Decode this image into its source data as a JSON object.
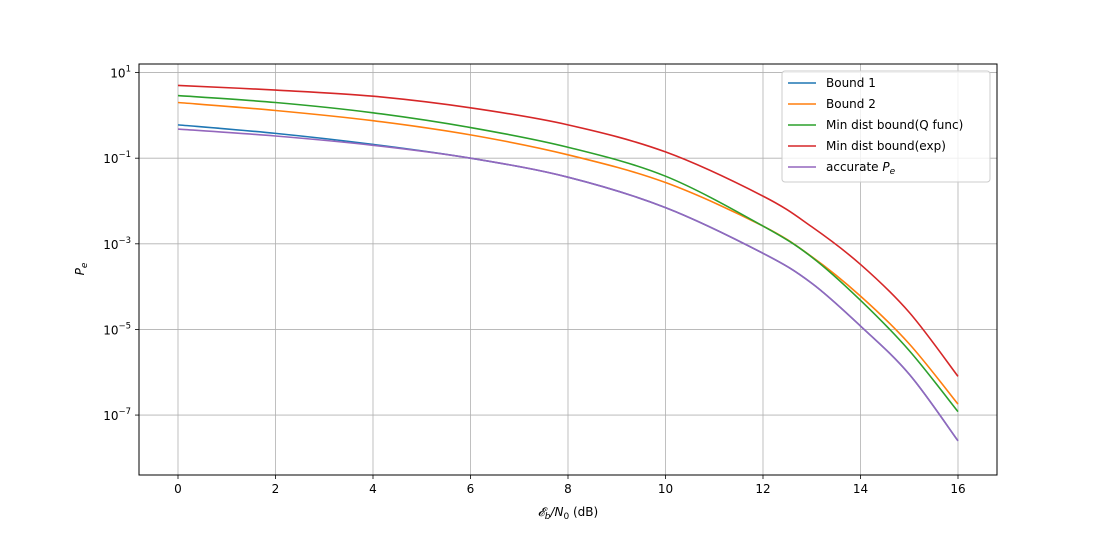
{
  "chart_data": {
    "type": "line",
    "xlabel": "𝓔b/N0 (dB)",
    "xlabel_parts": {
      "e": "𝓔",
      "b_sub": "b",
      "slash_n": "/N",
      "zero_sub": "0",
      "units": " (dB)"
    },
    "ylabel_parts": {
      "p": "P",
      "e_sub": "e"
    },
    "yscale": "log",
    "xlim": [
      -0.8,
      16.8
    ],
    "ylim_exp": [
      -8.4,
      1.2
    ],
    "grid": true,
    "legend_position": "upper-right",
    "x_ticks": [
      0,
      2,
      4,
      6,
      8,
      10,
      12,
      14,
      16
    ],
    "x_tick_labels": [
      "0",
      "2",
      "4",
      "6",
      "8",
      "10",
      "12",
      "14",
      "16"
    ],
    "y_ticks_exp": [
      1,
      -1,
      -3,
      -5,
      -7
    ],
    "y_tick_base": "10",
    "y_tick_exponents": [
      "1",
      "−1",
      "−3",
      "−5",
      "−7"
    ],
    "x": [
      0,
      2,
      4,
      6,
      8,
      10,
      12,
      13,
      14,
      15,
      16
    ],
    "series": [
      {
        "name": "Bound 1",
        "color": "#1f77b4",
        "values": [
          0.6,
          0.38,
          0.21,
          0.1,
          0.036,
          0.007,
          0.0006,
          0.00012,
          1.2e-05,
          9e-07,
          2.5e-08
        ]
      },
      {
        "name": "Bound 2",
        "color": "#ff7f0e",
        "values": [
          2.0,
          1.3,
          0.75,
          0.35,
          0.12,
          0.027,
          0.0026,
          0.0005,
          6e-05,
          4.6e-06,
          1.8e-07
        ]
      },
      {
        "name": "Min dist bound(Q func)",
        "color": "#2ca02c",
        "values": [
          2.9,
          2.0,
          1.15,
          0.52,
          0.18,
          0.038,
          0.0026,
          0.00049,
          4.8e-05,
          3.2e-06,
          1.2e-07
        ]
      },
      {
        "name": "Min dist bound(exp)",
        "color": "#d62728",
        "values": [
          5.0,
          3.9,
          2.8,
          1.5,
          0.6,
          0.14,
          0.013,
          0.0025,
          0.00033,
          2.5e-05,
          8e-07
        ]
      },
      {
        "name_parts": {
          "text": "accurate ",
          "p": "P",
          "e_sub": "e"
        },
        "color": "#9467bd",
        "values": [
          0.48,
          0.33,
          0.2,
          0.1,
          0.036,
          0.007,
          0.0006,
          0.00012,
          1.2e-05,
          9e-07,
          2.5e-08
        ]
      }
    ]
  }
}
